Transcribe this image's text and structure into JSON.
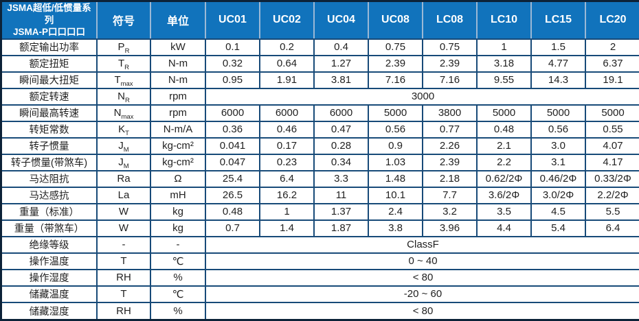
{
  "table": {
    "title_line1": "JSMA超低/低惯量系列",
    "title_line2": "JSMA-P口口口口",
    "col_symbol": "符号",
    "col_unit": "单位",
    "models": [
      "UC01",
      "UC02",
      "UC04",
      "UC08",
      "LC08",
      "LC10",
      "LC15",
      "LC20"
    ],
    "rows": [
      {
        "label": "额定输出功率",
        "symbol": {
          "base": "P",
          "sub": "R"
        },
        "unit": "kW",
        "values": [
          "0.1",
          "0.2",
          "0.4",
          "0.75",
          "0.75",
          "1",
          "1.5",
          "2"
        ]
      },
      {
        "label": "额定扭矩",
        "symbol": {
          "base": "T",
          "sub": "R"
        },
        "unit": "N-m",
        "values": [
          "0.32",
          "0.64",
          "1.27",
          "2.39",
          "2.39",
          "3.18",
          "4.77",
          "6.37"
        ]
      },
      {
        "label": "瞬间最大扭矩",
        "symbol": {
          "base": "T",
          "sub": "max"
        },
        "unit": "N-m",
        "values": [
          "0.95",
          "1.91",
          "3.81",
          "7.16",
          "7.16",
          "9.55",
          "14.3",
          "19.1"
        ]
      },
      {
        "label": "额定转速",
        "symbol": {
          "base": "N",
          "sub": "R"
        },
        "unit": "rpm",
        "span_value": "3000"
      },
      {
        "label": "瞬间最高转速",
        "symbol": {
          "base": "N",
          "sub": "max"
        },
        "unit": "rpm",
        "values": [
          "6000",
          "6000",
          "6000",
          "5000",
          "3800",
          "5000",
          "5000",
          "5000"
        ]
      },
      {
        "label": "转矩常数",
        "symbol": {
          "base": "K",
          "sub": "T"
        },
        "unit": "N-m/A",
        "values": [
          "0.36",
          "0.46",
          "0.47",
          "0.56",
          "0.77",
          "0.48",
          "0.56",
          "0.55"
        ]
      },
      {
        "label": "转子惯量",
        "symbol": {
          "base": "J",
          "sub": "M"
        },
        "unit": "kg-cm²",
        "values": [
          "0.041",
          "0.17",
          "0.28",
          "0.9",
          "2.26",
          "2.1",
          "3.0",
          "4.07"
        ]
      },
      {
        "label": "转子惯量(带煞车)",
        "symbol": {
          "base": "J",
          "sub": "M"
        },
        "unit": "kg-cm²",
        "values": [
          "0.047",
          "0.23",
          "0.34",
          "1.03",
          "2.39",
          "2.2",
          "3.1",
          "4.17"
        ]
      },
      {
        "label": "马达阻抗",
        "symbol": {
          "base": "Ra",
          "sub": ""
        },
        "unit": "Ω",
        "values": [
          "25.4",
          "6.4",
          "3.3",
          "1.48",
          "2.18",
          "0.62/2Φ",
          "0.46/2Φ",
          "0.33/2Φ"
        ]
      },
      {
        "label": "马达感抗",
        "symbol": {
          "base": "La",
          "sub": ""
        },
        "unit": "mH",
        "values": [
          "26.5",
          "16.2",
          "11",
          "10.1",
          "7.7",
          "3.6/2Φ",
          "3.0/2Φ",
          "2.2/2Φ"
        ]
      },
      {
        "label": "重量（标准）",
        "symbol": {
          "base": "W",
          "sub": ""
        },
        "unit": "kg",
        "values": [
          "0.48",
          "1",
          "1.37",
          "2.4",
          "3.2",
          "3.5",
          "4.5",
          "5.5"
        ]
      },
      {
        "label": "重量（带煞车）",
        "symbol": {
          "base": "W",
          "sub": ""
        },
        "unit": "kg",
        "values": [
          "0.7",
          "1.4",
          "1.87",
          "3.8",
          "3.96",
          "4.4",
          "5.4",
          "6.4"
        ]
      },
      {
        "label": "绝缘等级",
        "symbol": {
          "base": "-",
          "sub": ""
        },
        "unit": "-",
        "span_value": "ClassF"
      },
      {
        "label": "操作温度",
        "symbol": {
          "base": "T",
          "sub": ""
        },
        "unit": "℃",
        "span_value": "0 ~ 40"
      },
      {
        "label": "操作湿度",
        "symbol": {
          "base": "RH",
          "sub": ""
        },
        "unit": "%",
        "span_value": "< 80"
      },
      {
        "label": "储藏温度",
        "symbol": {
          "base": "T",
          "sub": ""
        },
        "unit": "℃",
        "span_value": "-20 ~ 60"
      },
      {
        "label": "储藏湿度",
        "symbol": {
          "base": "RH",
          "sub": ""
        },
        "unit": "%",
        "span_value": "< 80"
      }
    ]
  },
  "colors": {
    "header_bg": "#1173bc",
    "header_text": "#ffffff",
    "header_divider": "#9cb9d6",
    "grid": "#174a78",
    "outer_border": "#0c2238",
    "body_text": "#1f1f1f"
  }
}
